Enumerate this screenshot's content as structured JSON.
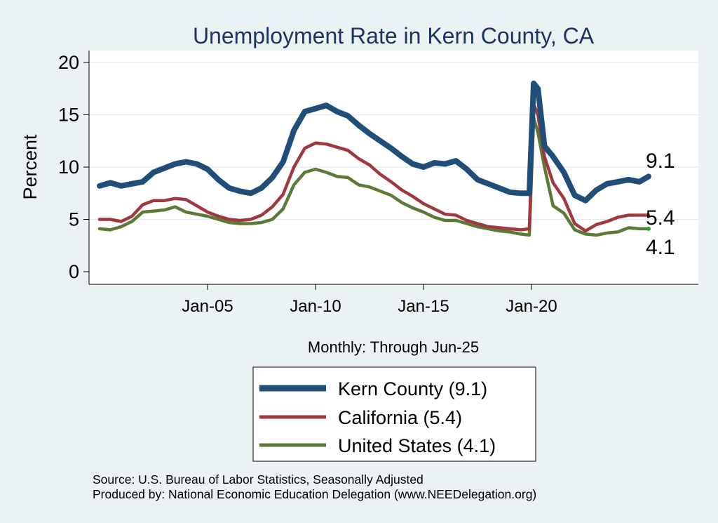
{
  "chart_data": {
    "type": "line",
    "title": "Unemployment Rate in Kern  County, CA",
    "ylabel": "Percent",
    "xlabel": "Monthly: Through Jun-25",
    "ylim": [
      0,
      20
    ],
    "xlim": [
      2000.0,
      2028.0
    ],
    "yticks": [
      0,
      5,
      10,
      15,
      20
    ],
    "xticks": [
      {
        "label": "Jan-05",
        "value": 2005.0
      },
      {
        "label": "Jan-10",
        "value": 2010.0
      },
      {
        "label": "Jan-15",
        "value": 2015.0
      },
      {
        "label": "Jan-20",
        "value": 2020.0
      }
    ],
    "series": [
      {
        "name": "Kern  County",
        "legend": "Kern  County (9.1)",
        "end_label": "9.1",
        "color": "#1f4e79",
        "points": [
          [
            2000.0,
            8.2
          ],
          [
            2000.5,
            8.5
          ],
          [
            2001.0,
            8.2
          ],
          [
            2001.5,
            8.4
          ],
          [
            2002.0,
            8.6
          ],
          [
            2002.5,
            9.5
          ],
          [
            2003.0,
            9.9
          ],
          [
            2003.5,
            10.3
          ],
          [
            2004.0,
            10.5
          ],
          [
            2004.5,
            10.3
          ],
          [
            2005.0,
            9.8
          ],
          [
            2005.5,
            8.8
          ],
          [
            2006.0,
            8.0
          ],
          [
            2006.5,
            7.7
          ],
          [
            2007.0,
            7.5
          ],
          [
            2007.5,
            8.0
          ],
          [
            2008.0,
            9.0
          ],
          [
            2008.5,
            10.5
          ],
          [
            2009.0,
            13.5
          ],
          [
            2009.5,
            15.3
          ],
          [
            2010.0,
            15.6
          ],
          [
            2010.5,
            15.9
          ],
          [
            2011.0,
            15.3
          ],
          [
            2011.5,
            14.9
          ],
          [
            2012.0,
            14.0
          ],
          [
            2012.5,
            13.2
          ],
          [
            2013.0,
            12.5
          ],
          [
            2013.5,
            11.8
          ],
          [
            2014.0,
            11.0
          ],
          [
            2014.5,
            10.3
          ],
          [
            2015.0,
            10.0
          ],
          [
            2015.5,
            10.4
          ],
          [
            2016.0,
            10.3
          ],
          [
            2016.5,
            10.6
          ],
          [
            2017.0,
            9.8
          ],
          [
            2017.5,
            8.8
          ],
          [
            2018.0,
            8.4
          ],
          [
            2018.5,
            8.0
          ],
          [
            2019.0,
            7.6
          ],
          [
            2019.5,
            7.5
          ],
          [
            2019.9,
            7.5
          ],
          [
            2020.1,
            18.0
          ],
          [
            2020.3,
            17.5
          ],
          [
            2020.6,
            12.0
          ],
          [
            2021.0,
            11.0
          ],
          [
            2021.5,
            9.5
          ],
          [
            2022.0,
            7.3
          ],
          [
            2022.5,
            6.8
          ],
          [
            2023.0,
            7.8
          ],
          [
            2023.5,
            8.4
          ],
          [
            2024.0,
            8.6
          ],
          [
            2024.5,
            8.8
          ],
          [
            2025.0,
            8.6
          ],
          [
            2025.42,
            9.1
          ]
        ]
      },
      {
        "name": "California",
        "legend": "California (5.4)",
        "end_label": "5.4",
        "color": "#a0393f",
        "points": [
          [
            2000.0,
            5.0
          ],
          [
            2000.5,
            5.0
          ],
          [
            2001.0,
            4.8
          ],
          [
            2001.5,
            5.3
          ],
          [
            2002.0,
            6.4
          ],
          [
            2002.5,
            6.8
          ],
          [
            2003.0,
            6.8
          ],
          [
            2003.5,
            7.0
          ],
          [
            2004.0,
            6.9
          ],
          [
            2004.5,
            6.3
          ],
          [
            2005.0,
            5.7
          ],
          [
            2005.5,
            5.3
          ],
          [
            2006.0,
            5.0
          ],
          [
            2006.5,
            4.9
          ],
          [
            2007.0,
            5.0
          ],
          [
            2007.5,
            5.4
          ],
          [
            2008.0,
            6.2
          ],
          [
            2008.5,
            7.4
          ],
          [
            2009.0,
            10.0
          ],
          [
            2009.5,
            11.8
          ],
          [
            2010.0,
            12.3
          ],
          [
            2010.5,
            12.2
          ],
          [
            2011.0,
            11.9
          ],
          [
            2011.5,
            11.6
          ],
          [
            2012.0,
            10.8
          ],
          [
            2012.5,
            10.2
          ],
          [
            2013.0,
            9.3
          ],
          [
            2013.5,
            8.6
          ],
          [
            2014.0,
            7.8
          ],
          [
            2014.5,
            7.2
          ],
          [
            2015.0,
            6.5
          ],
          [
            2015.5,
            6.0
          ],
          [
            2016.0,
            5.5
          ],
          [
            2016.5,
            5.4
          ],
          [
            2017.0,
            4.9
          ],
          [
            2017.5,
            4.6
          ],
          [
            2018.0,
            4.3
          ],
          [
            2018.5,
            4.2
          ],
          [
            2019.0,
            4.1
          ],
          [
            2019.5,
            4.0
          ],
          [
            2019.9,
            4.1
          ],
          [
            2020.1,
            16.0
          ],
          [
            2020.3,
            15.0
          ],
          [
            2020.6,
            11.0
          ],
          [
            2021.0,
            8.5
          ],
          [
            2021.5,
            7.0
          ],
          [
            2022.0,
            4.6
          ],
          [
            2022.5,
            3.9
          ],
          [
            2023.0,
            4.5
          ],
          [
            2023.5,
            4.8
          ],
          [
            2024.0,
            5.2
          ],
          [
            2024.5,
            5.4
          ],
          [
            2025.0,
            5.4
          ],
          [
            2025.42,
            5.4
          ]
        ]
      },
      {
        "name": "United States",
        "legend": "United States (4.1)",
        "end_label": "4.1",
        "color": "#5a7a36",
        "points": [
          [
            2000.0,
            4.1
          ],
          [
            2000.5,
            4.0
          ],
          [
            2001.0,
            4.3
          ],
          [
            2001.5,
            4.8
          ],
          [
            2002.0,
            5.7
          ],
          [
            2002.5,
            5.8
          ],
          [
            2003.0,
            5.9
          ],
          [
            2003.5,
            6.2
          ],
          [
            2004.0,
            5.7
          ],
          [
            2004.5,
            5.5
          ],
          [
            2005.0,
            5.3
          ],
          [
            2005.5,
            5.0
          ],
          [
            2006.0,
            4.7
          ],
          [
            2006.5,
            4.6
          ],
          [
            2007.0,
            4.6
          ],
          [
            2007.5,
            4.7
          ],
          [
            2008.0,
            5.0
          ],
          [
            2008.5,
            6.0
          ],
          [
            2009.0,
            8.3
          ],
          [
            2009.5,
            9.5
          ],
          [
            2010.0,
            9.8
          ],
          [
            2010.5,
            9.5
          ],
          [
            2011.0,
            9.1
          ],
          [
            2011.5,
            9.0
          ],
          [
            2012.0,
            8.3
          ],
          [
            2012.5,
            8.1
          ],
          [
            2013.0,
            7.7
          ],
          [
            2013.5,
            7.3
          ],
          [
            2014.0,
            6.6
          ],
          [
            2014.5,
            6.1
          ],
          [
            2015.0,
            5.7
          ],
          [
            2015.5,
            5.2
          ],
          [
            2016.0,
            4.9
          ],
          [
            2016.5,
            4.9
          ],
          [
            2017.0,
            4.6
          ],
          [
            2017.5,
            4.3
          ],
          [
            2018.0,
            4.1
          ],
          [
            2018.5,
            3.9
          ],
          [
            2019.0,
            3.8
          ],
          [
            2019.5,
            3.6
          ],
          [
            2019.9,
            3.5
          ],
          [
            2020.1,
            14.7
          ],
          [
            2020.3,
            13.3
          ],
          [
            2020.6,
            10.0
          ],
          [
            2021.0,
            6.3
          ],
          [
            2021.5,
            5.6
          ],
          [
            2022.0,
            4.0
          ],
          [
            2022.5,
            3.6
          ],
          [
            2023.0,
            3.5
          ],
          [
            2023.5,
            3.7
          ],
          [
            2024.0,
            3.8
          ],
          [
            2024.5,
            4.2
          ],
          [
            2025.0,
            4.1
          ],
          [
            2025.42,
            4.1
          ]
        ]
      }
    ]
  },
  "source_note": "Source: U.S. Bureau of Labor Statistics, Seasonally Adjusted",
  "produced_by": "Produced by: National Economic Education Delegation (www.NEEDelegation.org)"
}
